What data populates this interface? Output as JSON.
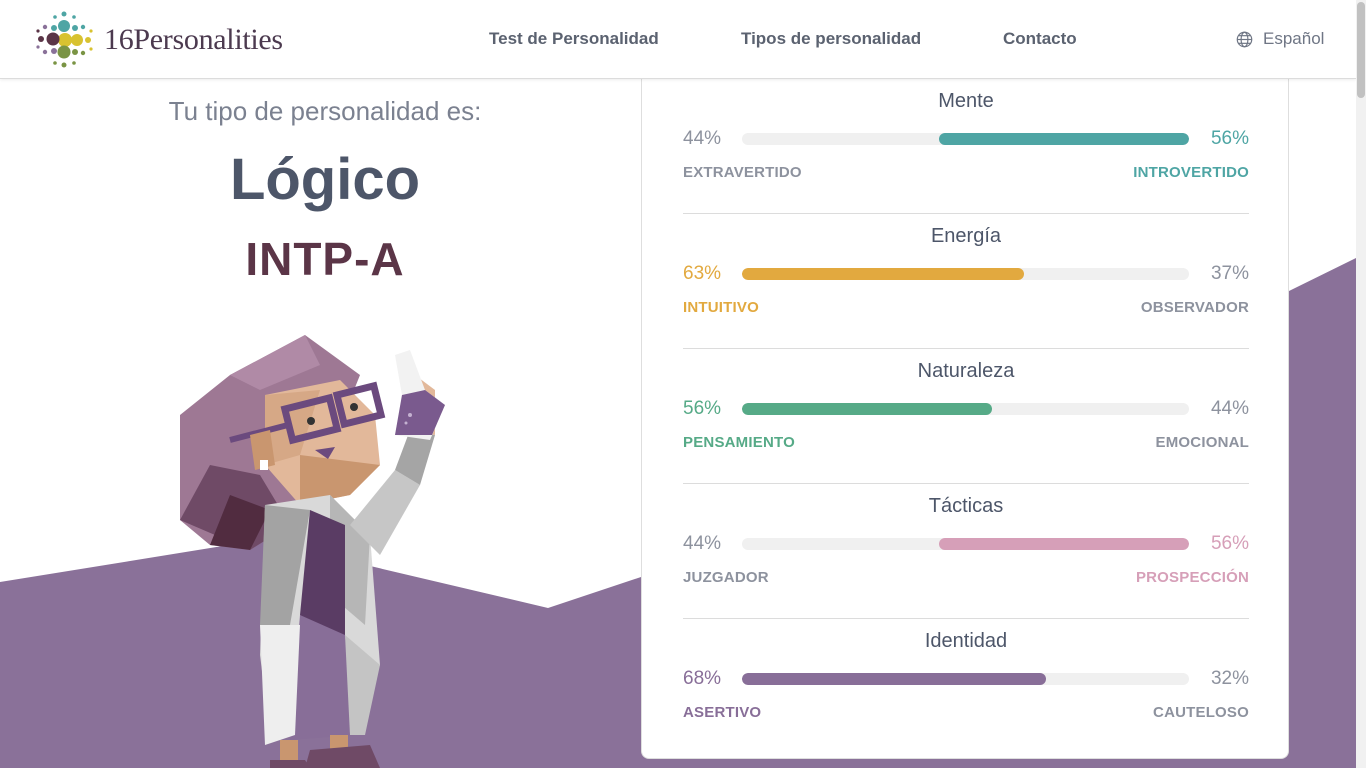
{
  "header": {
    "logo_text": "16Personalities",
    "nav": [
      {
        "label": "Test de Personalidad"
      },
      {
        "label": "Tipos de personalidad"
      },
      {
        "label": "Contacto"
      }
    ],
    "language": "Español"
  },
  "result": {
    "intro": "Tu tipo de personalidad es:",
    "type_name": "Lógico",
    "type_code": "INTP-A"
  },
  "traits": [
    {
      "title": "Mente",
      "left_pct": "44%",
      "right_pct": "56%",
      "left_label": "EXTRAVERTIDO",
      "right_label": "INTROVERTIDO",
      "dominant": "right",
      "value": 56,
      "color": "#4ea5a4"
    },
    {
      "title": "Energía",
      "left_pct": "63%",
      "right_pct": "37%",
      "left_label": "INTUITIVO",
      "right_label": "OBSERVADOR",
      "dominant": "left",
      "value": 63,
      "color": "#e2a93f"
    },
    {
      "title": "Naturaleza",
      "left_pct": "56%",
      "right_pct": "44%",
      "left_label": "PENSAMIENTO",
      "right_label": "EMOCIONAL",
      "dominant": "left",
      "value": 56,
      "color": "#56aa87"
    },
    {
      "title": "Tácticas",
      "left_pct": "44%",
      "right_pct": "56%",
      "left_label": "JUZGADOR",
      "right_label": "PROSPECCIÓN",
      "dominant": "right",
      "value": 56,
      "color": "#d69fb8"
    },
    {
      "title": "Identidad",
      "left_pct": "68%",
      "right_pct": "32%",
      "left_label": "ASERTIVO",
      "right_label": "CAUTELOSO",
      "dominant": "left",
      "value": 68,
      "color": "#886e98"
    }
  ],
  "colors": {
    "background_band": "#8a7199",
    "type_code": "#5b3547"
  },
  "icons": {
    "logo": "16personalities-dots-logo",
    "language": "globe-icon"
  }
}
